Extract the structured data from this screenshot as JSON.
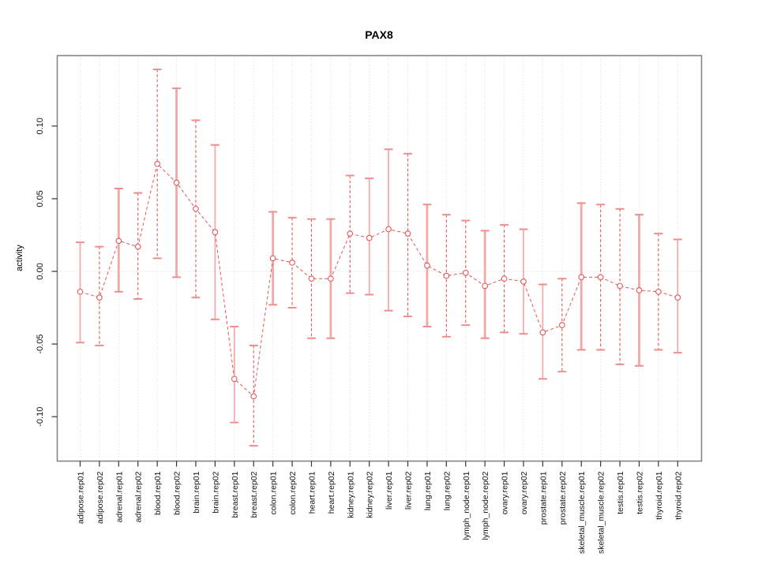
{
  "chart_data": {
    "type": "line",
    "title": "PAX8",
    "xlabel": "",
    "ylabel": "activity",
    "ylim": [
      -0.132,
      0.148
    ],
    "yticks": [
      "0.10",
      "0.05",
      "0.00",
      "-0.05",
      "-0.10"
    ],
    "ytick_values": [
      0.1,
      0.05,
      0.0,
      -0.05,
      -0.1
    ],
    "zero_line": true,
    "grid": "vertical-dotted-per-category",
    "legend_position": "none",
    "categories": [
      "adipose.rep01",
      "adipose.rep02",
      "adrenal.rep01",
      "adrenal.rep02",
      "blood.rep01",
      "blood.rep02",
      "brain.rep01",
      "brain.rep02",
      "breast.rep01",
      "breast.rep02",
      "colon.rep01",
      "colon.rep02",
      "heart.rep01",
      "heart.rep02",
      "kidney.rep01",
      "kidney.rep02",
      "liver.rep01",
      "liver.rep02",
      "lung.rep01",
      "lung.rep02",
      "lymph_node.rep01",
      "lymph_node.rep02",
      "ovary.rep01",
      "ovary.rep02",
      "prostate.rep01",
      "prostate.rep02",
      "skeletal_muscle.rep01",
      "skeletal_muscle.rep02",
      "testis.rep01",
      "testis.rep02",
      "thyroid.rep01",
      "thyroid.rep02"
    ],
    "series": [
      {
        "name": "activity",
        "values": [
          -0.014,
          -0.018,
          0.021,
          0.017,
          0.074,
          0.061,
          0.043,
          0.027,
          -0.074,
          -0.086,
          0.009,
          0.006,
          -0.005,
          -0.005,
          0.026,
          0.023,
          0.029,
          0.026,
          0.004,
          -0.003,
          -0.001,
          -0.01,
          -0.005,
          -0.007,
          -0.042,
          -0.037,
          -0.004,
          -0.004,
          -0.01,
          -0.013,
          -0.014,
          -0.018
        ],
        "err_hi": [
          0.02,
          0.017,
          0.057,
          0.054,
          0.139,
          0.126,
          0.104,
          0.087,
          -0.038,
          -0.051,
          0.041,
          0.037,
          0.036,
          0.036,
          0.066,
          0.064,
          0.084,
          0.081,
          0.046,
          0.039,
          0.035,
          0.028,
          0.032,
          0.029,
          -0.009,
          -0.005,
          0.047,
          0.046,
          0.043,
          0.039,
          0.026,
          0.022
        ],
        "err_lo": [
          -0.049,
          -0.051,
          -0.014,
          -0.019,
          0.009,
          -0.004,
          -0.018,
          -0.033,
          -0.104,
          -0.12,
          -0.023,
          -0.025,
          -0.046,
          -0.046,
          -0.015,
          -0.016,
          -0.027,
          -0.031,
          -0.038,
          -0.045,
          -0.037,
          -0.046,
          -0.042,
          -0.043,
          -0.074,
          -0.069,
          -0.054,
          -0.054,
          -0.064,
          -0.065,
          -0.054,
          -0.056
        ],
        "bar_styles": [
          "solid",
          "dashed",
          "solid-thick",
          "dashed",
          "dashed",
          "solid-thick",
          "dashed",
          "solid",
          "solid",
          "dashed",
          "solid-thick",
          "dashed",
          "dashed",
          "solid-thick",
          "dashed",
          "solid",
          "solid",
          "dashed",
          "solid-thick",
          "dashed",
          "dashed",
          "solid-thick",
          "dashed",
          "solid",
          "solid",
          "dashed",
          "solid-thick",
          "dashed",
          "dashed",
          "solid-thick",
          "dashed",
          "solid"
        ]
      }
    ],
    "colors": {
      "marker_line": "#e25858",
      "dashed_bar": "#e25858",
      "solid_bar": "#f2a8a8",
      "cap": "#ee8e8e",
      "grid": "#d9d9d9",
      "zero_line": "#d0d0d0",
      "box_border": "#858585",
      "tick": "#333333",
      "text": "#111111"
    }
  }
}
